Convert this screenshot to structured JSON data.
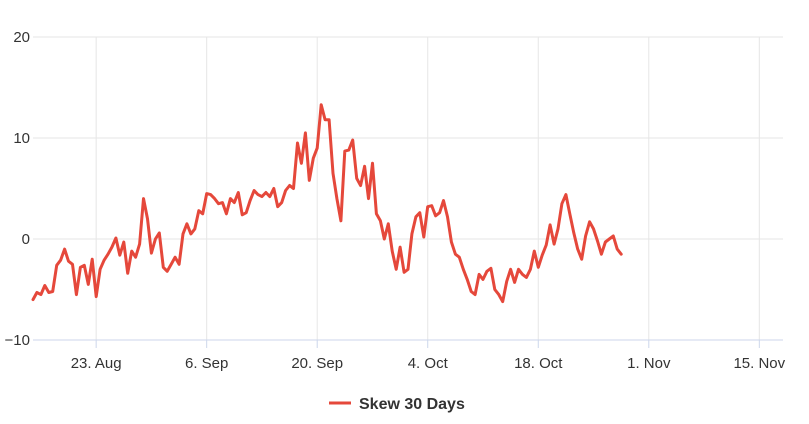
{
  "chart_data": {
    "type": "line",
    "title": "",
    "xlabel": "",
    "ylabel": "",
    "ylim": [
      -10,
      20
    ],
    "xlim": [
      "2021-08-15",
      "2021-11-18"
    ],
    "y_ticks": [
      {
        "value": 20,
        "label": "20"
      },
      {
        "value": 10,
        "label": "10"
      },
      {
        "value": 0,
        "label": "0"
      },
      {
        "value": -10,
        "label": "−10"
      }
    ],
    "x_ticks": [
      {
        "date": "2021-08-23",
        "label": "23. Aug"
      },
      {
        "date": "2021-09-06",
        "label": "6. Sep"
      },
      {
        "date": "2021-09-20",
        "label": "20. Sep"
      },
      {
        "date": "2021-10-04",
        "label": "4. Oct"
      },
      {
        "date": "2021-10-18",
        "label": "18. Oct"
      },
      {
        "date": "2021-11-01",
        "label": "1. Nov"
      },
      {
        "date": "2021-11-15",
        "label": "15. Nov"
      }
    ],
    "grid": {
      "vertical": true,
      "horizontal": true
    },
    "legend": "bottom-center",
    "series": [
      {
        "name": "Skew 30 Days",
        "color": "#e5483b",
        "points": [
          [
            "2021-08-15",
            -6.0
          ],
          [
            "2021-08-15T12:00",
            -5.3
          ],
          [
            "2021-08-16",
            -5.5
          ],
          [
            "2021-08-16T12:00",
            -4.6
          ],
          [
            "2021-08-17",
            -5.3
          ],
          [
            "2021-08-17T12:00",
            -5.2
          ],
          [
            "2021-08-18",
            -2.6
          ],
          [
            "2021-08-18T12:00",
            -2.1
          ],
          [
            "2021-08-19",
            -1.0
          ],
          [
            "2021-08-19T12:00",
            -2.2
          ],
          [
            "2021-08-20",
            -2.5
          ],
          [
            "2021-08-20T12:00",
            -5.5
          ],
          [
            "2021-08-21",
            -2.8
          ],
          [
            "2021-08-21T12:00",
            -2.6
          ],
          [
            "2021-08-22",
            -4.5
          ],
          [
            "2021-08-22T12:00",
            -2.0
          ],
          [
            "2021-08-23",
            -5.7
          ],
          [
            "2021-08-23T12:00",
            -3.0
          ],
          [
            "2021-08-24",
            -2.1
          ],
          [
            "2021-08-24T12:00",
            -1.5
          ],
          [
            "2021-08-25",
            -0.8
          ],
          [
            "2021-08-25T12:00",
            0.1
          ],
          [
            "2021-08-26",
            -1.6
          ],
          [
            "2021-08-26T12:00",
            -0.3
          ],
          [
            "2021-08-27",
            -3.4
          ],
          [
            "2021-08-27T12:00",
            -1.2
          ],
          [
            "2021-08-28",
            -1.8
          ],
          [
            "2021-08-28T12:00",
            -0.5
          ],
          [
            "2021-08-29",
            4.0
          ],
          [
            "2021-08-29T12:00",
            2.0
          ],
          [
            "2021-08-30",
            -1.4
          ],
          [
            "2021-08-30T12:00",
            0.0
          ],
          [
            "2021-08-31",
            0.6
          ],
          [
            "2021-08-31T12:00",
            -2.8
          ],
          [
            "2021-09-01",
            -3.2
          ],
          [
            "2021-09-01T12:00",
            -2.5
          ],
          [
            "2021-09-02",
            -1.8
          ],
          [
            "2021-09-02T12:00",
            -2.5
          ],
          [
            "2021-09-03",
            0.5
          ],
          [
            "2021-09-03T12:00",
            1.5
          ],
          [
            "2021-09-04",
            0.5
          ],
          [
            "2021-09-04T12:00",
            1.0
          ],
          [
            "2021-09-05",
            2.8
          ],
          [
            "2021-09-05T12:00",
            2.5
          ],
          [
            "2021-09-06",
            4.5
          ],
          [
            "2021-09-06T12:00",
            4.4
          ],
          [
            "2021-09-07",
            4.0
          ],
          [
            "2021-09-07T12:00",
            3.5
          ],
          [
            "2021-09-08",
            3.6
          ],
          [
            "2021-09-08T12:00",
            2.5
          ],
          [
            "2021-09-09",
            4.0
          ],
          [
            "2021-09-09T12:00",
            3.6
          ],
          [
            "2021-09-10",
            4.6
          ],
          [
            "2021-09-10T12:00",
            2.4
          ],
          [
            "2021-09-11",
            2.6
          ],
          [
            "2021-09-11T12:00",
            3.8
          ],
          [
            "2021-09-12",
            4.8
          ],
          [
            "2021-09-12T12:00",
            4.4
          ],
          [
            "2021-09-13",
            4.2
          ],
          [
            "2021-09-13T12:00",
            4.6
          ],
          [
            "2021-09-14",
            4.2
          ],
          [
            "2021-09-14T12:00",
            5.0
          ],
          [
            "2021-09-15",
            3.2
          ],
          [
            "2021-09-15T12:00",
            3.6
          ],
          [
            "2021-09-16",
            4.8
          ],
          [
            "2021-09-16T12:00",
            5.3
          ],
          [
            "2021-09-17",
            5.0
          ],
          [
            "2021-09-17T12:00",
            9.5
          ],
          [
            "2021-09-18",
            7.5
          ],
          [
            "2021-09-18T12:00",
            10.5
          ],
          [
            "2021-09-19",
            5.8
          ],
          [
            "2021-09-19T12:00",
            8.0
          ],
          [
            "2021-09-20",
            9.0
          ],
          [
            "2021-09-20T12:00",
            13.3
          ],
          [
            "2021-09-21",
            11.8
          ],
          [
            "2021-09-21T12:00",
            11.8
          ],
          [
            "2021-09-22",
            6.5
          ],
          [
            "2021-09-22T12:00",
            4.0
          ],
          [
            "2021-09-23",
            1.8
          ],
          [
            "2021-09-23T12:00",
            8.7
          ],
          [
            "2021-09-24",
            8.8
          ],
          [
            "2021-09-24T12:00",
            9.8
          ],
          [
            "2021-09-25",
            6.0
          ],
          [
            "2021-09-25T12:00",
            5.3
          ],
          [
            "2021-09-26",
            7.2
          ],
          [
            "2021-09-26T12:00",
            4.0
          ],
          [
            "2021-09-27",
            7.5
          ],
          [
            "2021-09-27T12:00",
            2.5
          ],
          [
            "2021-09-28",
            1.8
          ],
          [
            "2021-09-28T12:00",
            0.0
          ],
          [
            "2021-09-29",
            1.5
          ],
          [
            "2021-09-29T12:00",
            -1.2
          ],
          [
            "2021-09-30",
            -3.0
          ],
          [
            "2021-09-30T12:00",
            -0.8
          ],
          [
            "2021-10-01",
            -3.3
          ],
          [
            "2021-10-01T12:00",
            -3.0
          ],
          [
            "2021-10-02",
            0.5
          ],
          [
            "2021-10-02T12:00",
            2.2
          ],
          [
            "2021-10-03",
            2.6
          ],
          [
            "2021-10-03T12:00",
            0.2
          ],
          [
            "2021-10-04",
            3.2
          ],
          [
            "2021-10-04T12:00",
            3.3
          ],
          [
            "2021-10-05",
            2.3
          ],
          [
            "2021-10-05T12:00",
            2.6
          ],
          [
            "2021-10-06",
            3.8
          ],
          [
            "2021-10-06T12:00",
            2.2
          ],
          [
            "2021-10-07",
            -0.3
          ],
          [
            "2021-10-07T12:00",
            -1.5
          ],
          [
            "2021-10-08",
            -1.8
          ],
          [
            "2021-10-08T12:00",
            -3.0
          ],
          [
            "2021-10-09",
            -4.0
          ],
          [
            "2021-10-09T12:00",
            -5.2
          ],
          [
            "2021-10-10",
            -5.5
          ],
          [
            "2021-10-10T12:00",
            -3.5
          ],
          [
            "2021-10-11",
            -4.0
          ],
          [
            "2021-10-11T12:00",
            -3.2
          ],
          [
            "2021-10-12",
            -2.9
          ],
          [
            "2021-10-12T12:00",
            -5.0
          ],
          [
            "2021-10-13",
            -5.5
          ],
          [
            "2021-10-13T12:00",
            -6.2
          ],
          [
            "2021-10-14",
            -4.2
          ],
          [
            "2021-10-14T12:00",
            -3.0
          ],
          [
            "2021-10-15",
            -4.3
          ],
          [
            "2021-10-15T12:00",
            -3.0
          ],
          [
            "2021-10-16",
            -3.5
          ],
          [
            "2021-10-16T12:00",
            -3.8
          ],
          [
            "2021-10-17",
            -3.0
          ],
          [
            "2021-10-17T12:00",
            -1.2
          ],
          [
            "2021-10-18",
            -2.8
          ],
          [
            "2021-10-18T12:00",
            -1.6
          ],
          [
            "2021-10-19",
            -0.6
          ],
          [
            "2021-10-19T12:00",
            1.4
          ],
          [
            "2021-10-20",
            -0.5
          ],
          [
            "2021-10-20T12:00",
            1.0
          ],
          [
            "2021-10-21",
            3.5
          ],
          [
            "2021-10-21T12:00",
            4.4
          ],
          [
            "2021-10-22",
            2.5
          ],
          [
            "2021-10-22T12:00",
            0.6
          ],
          [
            "2021-10-23",
            -1.0
          ],
          [
            "2021-10-23T12:00",
            -2.0
          ],
          [
            "2021-10-24",
            0.3
          ],
          [
            "2021-10-24T12:00",
            1.7
          ],
          [
            "2021-10-25",
            1.0
          ],
          [
            "2021-10-25T12:00",
            -0.2
          ],
          [
            "2021-10-26",
            -1.5
          ],
          [
            "2021-10-26T12:00",
            -0.3
          ],
          [
            "2021-10-27",
            0.0
          ],
          [
            "2021-10-27T12:00",
            0.3
          ],
          [
            "2021-10-28",
            -1.0
          ],
          [
            "2021-10-28T12:00",
            -1.5
          ]
        ]
      }
    ]
  }
}
